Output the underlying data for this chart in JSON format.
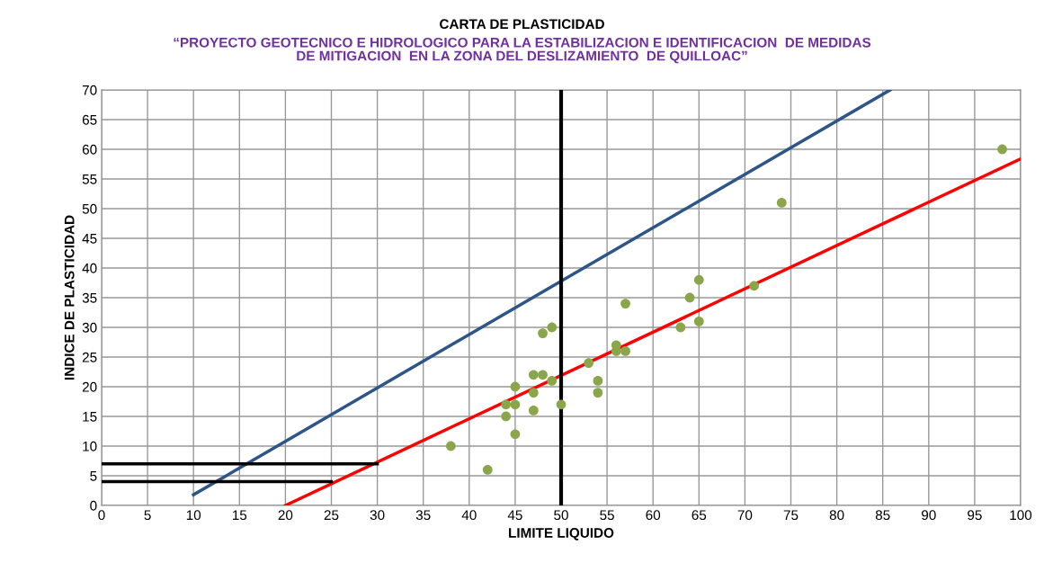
{
  "chart_data": {
    "type": "scatter",
    "title": "CARTA DE PLASTICIDAD",
    "subtitle": "“PROYECTO GEOTECNICO E HIDROLOGICO PARA LA ESTABILIZACION E IDENTIFICACION  DE MEDIDAS\nDE MITIGACION  EN LA ZONA DEL DESLIZAMIENTO  DE QUILLOAC”",
    "xlabel": "LIMITE LIQUIDO",
    "ylabel": "INDICE DE PLASTICIDAD",
    "xlim": [
      0,
      100
    ],
    "ylim": [
      0,
      70
    ],
    "xticks": [
      0,
      5,
      10,
      15,
      20,
      25,
      30,
      35,
      40,
      45,
      50,
      55,
      60,
      65,
      70,
      75,
      80,
      85,
      90,
      95,
      100
    ],
    "yticks": [
      0,
      5,
      10,
      15,
      20,
      25,
      30,
      35,
      40,
      45,
      50,
      55,
      60,
      65,
      70
    ],
    "grid": true,
    "legend": false,
    "ref_lines": [
      {
        "axis": "x",
        "value": 50,
        "color": "#000000"
      }
    ],
    "series": [
      {
        "color": "#8aa64a",
        "marker": "circle",
        "x": [
          38,
          42,
          44,
          44,
          45,
          45,
          45,
          47,
          47,
          47,
          48,
          48,
          49,
          49,
          50,
          53,
          54,
          54,
          56,
          56,
          57,
          57,
          63,
          64,
          65,
          65,
          71,
          74,
          98
        ],
        "values": [
          10,
          6,
          17,
          15,
          20,
          17,
          12,
          22,
          19,
          16,
          29,
          22,
          30,
          21,
          17,
          24,
          21,
          19,
          27,
          26,
          34,
          26,
          30,
          35,
          38,
          31,
          37,
          51,
          60
        ]
      },
      {
        "type": "line",
        "color": "#2e5587",
        "marker": "none",
        "x": [
          10,
          85.8
        ],
        "values": [
          1.8,
          70
        ]
      },
      {
        "type": "line",
        "color": "#ff0000",
        "marker": "none",
        "x": [
          20,
          100
        ],
        "values": [
          0,
          58.4
        ]
      },
      {
        "type": "line",
        "color": "#000000",
        "marker": "none",
        "x": [
          0,
          30
        ],
        "values": [
          7,
          7
        ]
      },
      {
        "type": "line",
        "color": "#000000",
        "marker": "none",
        "x": [
          0,
          25
        ],
        "values": [
          4,
          4
        ]
      }
    ]
  }
}
